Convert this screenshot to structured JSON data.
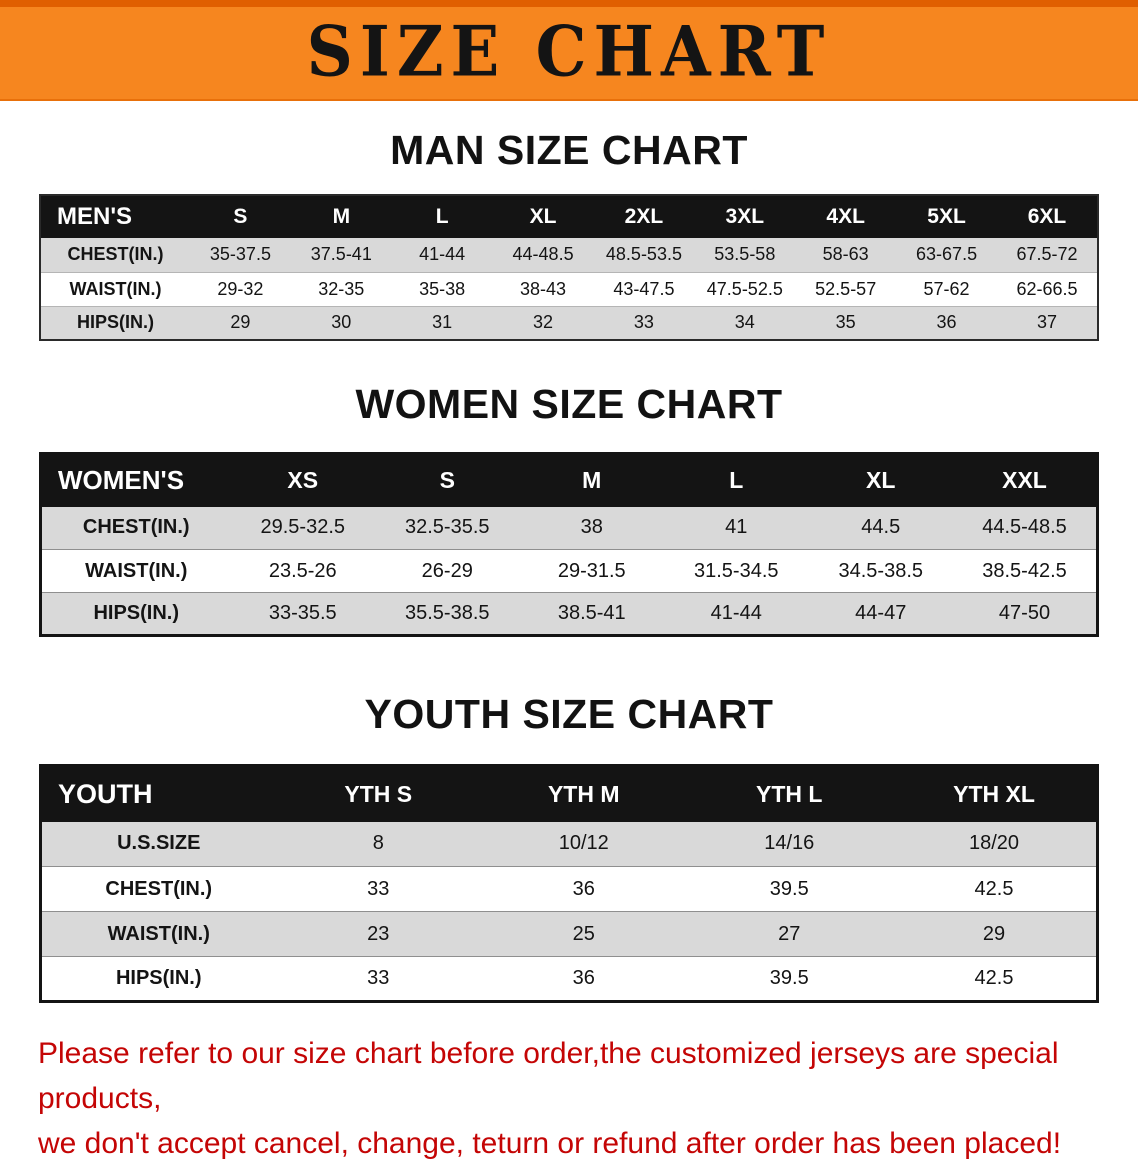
{
  "banner": {
    "title": "SIZE CHART"
  },
  "colors": {
    "banner_orange": "#f6861f",
    "banner_edge_orange": "#e05f00",
    "header_black": "#141414",
    "row_gray": "#d9d9d9",
    "disclaimer_red": "#c40505"
  },
  "sections": [
    {
      "id": "men",
      "heading": "MAN SIZE CHART",
      "table": {
        "header": [
          "MEN'S",
          "S",
          "M",
          "L",
          "XL",
          "2XL",
          "3XL",
          "4XL",
          "5XL",
          "6XL"
        ],
        "rows": [
          [
            "CHEST(IN.)",
            "35-37.5",
            "37.5-41",
            "41-44",
            "44-48.5",
            "48.5-53.5",
            "53.5-58",
            "58-63",
            "63-67.5",
            "67.5-72"
          ],
          [
            "WAIST(IN.)",
            "29-32",
            "32-35",
            "35-38",
            "38-43",
            "43-47.5",
            "47.5-52.5",
            "52.5-57",
            "57-62",
            "62-66.5"
          ],
          [
            "HIPS(IN.)",
            "29",
            "30",
            "31",
            "32",
            "33",
            "34",
            "35",
            "36",
            "37"
          ]
        ]
      }
    },
    {
      "id": "women",
      "heading": "WOMEN SIZE CHART",
      "table": {
        "header": [
          "WOMEN'S",
          "XS",
          "S",
          "M",
          "L",
          "XL",
          "XXL"
        ],
        "rows": [
          [
            "CHEST(IN.)",
            "29.5-32.5",
            "32.5-35.5",
            "38",
            "41",
            "44.5",
            "44.5-48.5"
          ],
          [
            "WAIST(IN.)",
            "23.5-26",
            "26-29",
            "29-31.5",
            "31.5-34.5",
            "34.5-38.5",
            "38.5-42.5"
          ],
          [
            "HIPS(IN.)",
            "33-35.5",
            "35.5-38.5",
            "38.5-41",
            "41-44",
            "44-47",
            "47-50"
          ]
        ]
      }
    },
    {
      "id": "youth",
      "heading": "YOUTH SIZE CHART",
      "table": {
        "header": [
          "YOUTH",
          "YTH S",
          "YTH M",
          "YTH L",
          "YTH XL"
        ],
        "rows": [
          [
            "U.S.SIZE",
            "8",
            "10/12",
            "14/16",
            "18/20"
          ],
          [
            "CHEST(IN.)",
            "33",
            "36",
            "39.5",
            "42.5"
          ],
          [
            "WAIST(IN.)",
            "23",
            "25",
            "27",
            "29"
          ],
          [
            "HIPS(IN.)",
            "33",
            "36",
            "39.5",
            "42.5"
          ]
        ]
      }
    }
  ],
  "disclaimer": {
    "line1": "Please refer to our size chart before order,the customized jerseys are special products,",
    "line2": "we don't accept cancel, change, teturn or refund after order has been placed!"
  }
}
